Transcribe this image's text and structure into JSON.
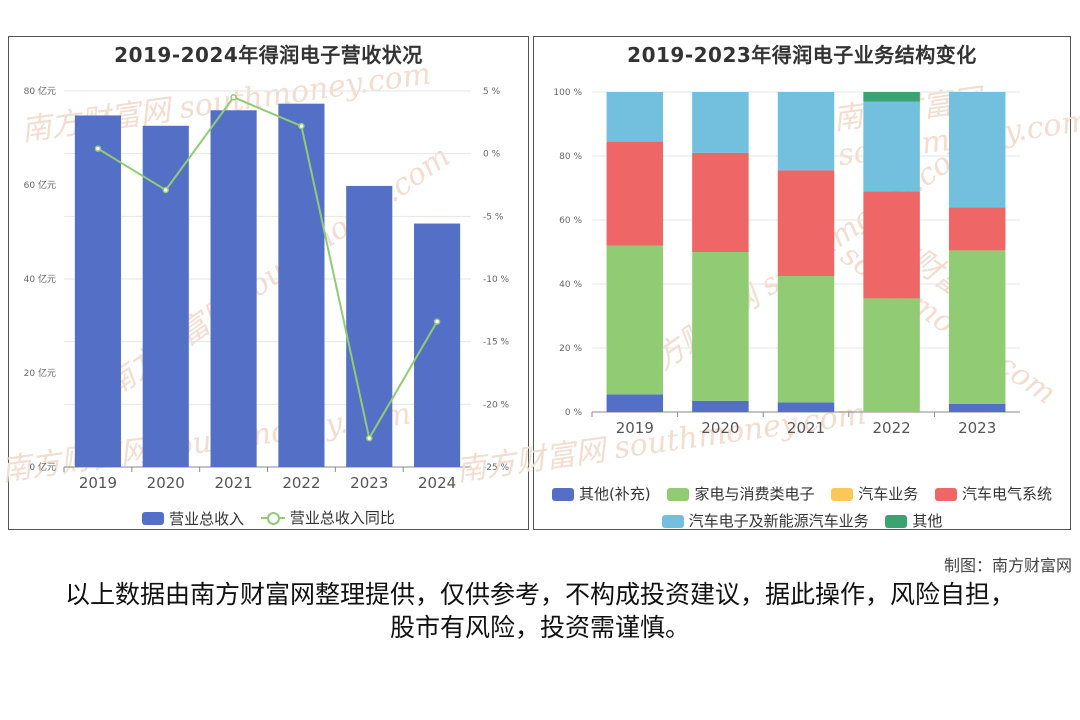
{
  "watermark": "南方财富网 southmoney.com",
  "credit": "制图：南方财富网",
  "disclaimer": "以上数据由南方财富网整理提供，仅供参考，不构成投资建议，据此操作，风险自担，股市有风险，投资需谨慎。",
  "chart_data": [
    {
      "type": "bar",
      "title": "2019-2024年得润电子营收状况",
      "categories": [
        "2019",
        "2020",
        "2021",
        "2022",
        "2023",
        "2024"
      ],
      "y_ticks_left": [
        "0 亿元",
        "20 亿元",
        "40 亿元",
        "60 亿元",
        "80 亿元"
      ],
      "y_ticks_right": [
        "-25 %",
        "-20 %",
        "-15 %",
        "-10 %",
        "-5 %",
        "0 %",
        "5 %"
      ],
      "ylim_left": [
        0,
        80
      ],
      "ylim_right": [
        -25,
        5
      ],
      "grid": true,
      "legend_position": "bottom",
      "series": [
        {
          "name": "营业总收入",
          "type": "bar",
          "axis": "left",
          "color": "#5470c6",
          "values": [
            74.8,
            72.6,
            75.9,
            77.3,
            59.8,
            51.8
          ]
        },
        {
          "name": "营业总收入同比",
          "type": "line",
          "axis": "right",
          "color": "#91cc75",
          "values": [
            0.4,
            -2.9,
            4.5,
            2.2,
            -22.7,
            -13.4
          ]
        }
      ]
    },
    {
      "type": "bar",
      "stacked": true,
      "title": "2019-2023年得润电子业务结构变化",
      "categories": [
        "2019",
        "2020",
        "2021",
        "2022",
        "2023"
      ],
      "y_ticks": [
        "0 %",
        "20 %",
        "40 %",
        "60 %",
        "80 %",
        "100 %"
      ],
      "ylim": [
        0,
        100
      ],
      "grid": true,
      "legend_position": "bottom",
      "series": [
        {
          "name": "其他(补充)",
          "color": "#5470c6",
          "values": [
            5.5,
            3.5,
            3.0,
            0,
            2.5
          ]
        },
        {
          "name": "家电与消费类电子",
          "color": "#91cc75",
          "values": [
            46.5,
            46.5,
            39.5,
            35.5,
            48.0
          ]
        },
        {
          "name": "汽车业务",
          "color": "#fac858",
          "values": [
            0,
            0,
            0,
            0,
            0
          ]
        },
        {
          "name": "汽车电气系统",
          "color": "#ee6666",
          "values": [
            32.5,
            31.0,
            33.0,
            33.5,
            13.5
          ]
        },
        {
          "name": "汽车电子及新能源汽车业务",
          "color": "#73c0de",
          "values": [
            15.5,
            19.0,
            24.5,
            28.0,
            36.0
          ]
        },
        {
          "name": "其他",
          "color": "#3ba272",
          "values": [
            0,
            0,
            0,
            3.0,
            0
          ]
        }
      ]
    }
  ]
}
